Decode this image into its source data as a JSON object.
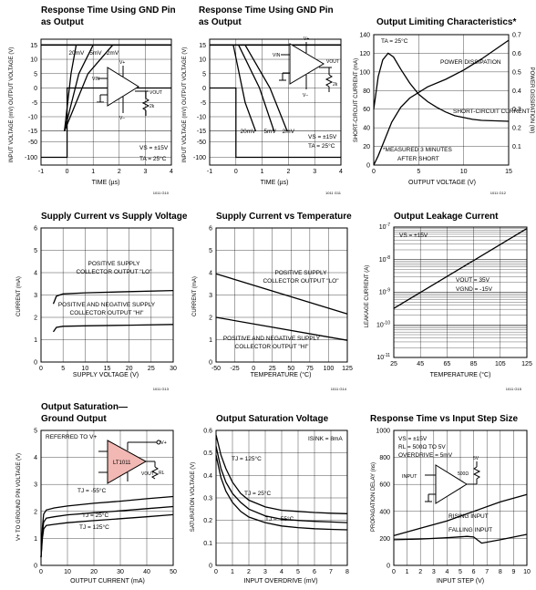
{
  "chart_data": [
    {
      "id": "p1",
      "type": "line",
      "title": [
        "Response Time Using GND Pin",
        "as Output"
      ],
      "xlabel": "TIME (µs)",
      "ylabel": "INPUT VOLTAGE (mV)   OUTPUT VOLTAGE (V)",
      "xlim": [
        -1,
        4
      ],
      "ylim": [
        -125,
        17
      ],
      "xticks": [
        -1,
        0,
        1,
        2,
        3,
        4
      ],
      "yticks": [
        15,
        10,
        5,
        0,
        -5,
        -10,
        -15,
        -50,
        -100
      ],
      "series": [
        {
          "name": "20mV",
          "points": [
            [
              -0.1,
              -15
            ],
            [
              0.15,
              5
            ],
            [
              0.35,
              15
            ]
          ]
        },
        {
          "name": "5mV",
          "points": [
            [
              -0.1,
              -15
            ],
            [
              0.45,
              5
            ],
            [
              1.0,
              15
            ]
          ]
        },
        {
          "name": "2mV",
          "points": [
            [
              -0.1,
              -15
            ],
            [
              0.8,
              5
            ],
            [
              1.75,
              15
            ]
          ]
        },
        {
          "name": "",
          "points": [
            [
              -1,
              -100
            ],
            [
              0,
              -100
            ],
            [
              0,
              0
            ],
            [
              4,
              0
            ]
          ]
        }
      ],
      "annotations": [
        "VS = ±15V",
        "TA = 25°C"
      ],
      "figure_id": "1011 G10"
    },
    {
      "id": "p2",
      "type": "line",
      "title": [
        "Response Time Using GND Pin",
        "as Output"
      ],
      "xlabel": "TIME (µs)",
      "ylabel": "INPUT VOLTAGE (mV)   OUTPUT VOLTAGE (V)",
      "xlim": [
        -1,
        4
      ],
      "ylim": [
        -125,
        17
      ],
      "xticks": [
        -1,
        0,
        1,
        2,
        3,
        4
      ],
      "yticks": [
        15,
        10,
        5,
        0,
        -5,
        -10,
        -15,
        -50,
        -100
      ],
      "series": [
        {
          "name": "20mV",
          "points": [
            [
              -0.1,
              15
            ],
            [
              0.35,
              -5
            ],
            [
              0.75,
              -15
            ]
          ]
        },
        {
          "name": "5mV",
          "points": [
            [
              0.1,
              15
            ],
            [
              0.9,
              0
            ],
            [
              1.45,
              -15
            ]
          ]
        },
        {
          "name": "2mV",
          "points": [
            [
              0.35,
              15
            ],
            [
              1.3,
              0
            ],
            [
              1.95,
              -15
            ]
          ]
        },
        {
          "name": "",
          "points": [
            [
              -1,
              0
            ],
            [
              0,
              0
            ],
            [
              0,
              -100
            ],
            [
              4,
              -100
            ]
          ]
        }
      ],
      "annotations": [
        "VS = ±15V",
        "TA = 25°C"
      ],
      "figure_id": "1011 G11"
    },
    {
      "id": "p3",
      "type": "line",
      "title": [
        "Output Limiting Characteristics*"
      ],
      "xlabel": "OUTPUT VOLTAGE (V)",
      "ylabel": "SHORT-CIRCUIT CURRENT (mA)",
      "ylabel_right": "POWER DISSIPATION (W)",
      "xlim": [
        0,
        15
      ],
      "ylim": [
        0,
        140
      ],
      "ylim_right": [
        0,
        0.7
      ],
      "xticks": [
        0,
        5,
        10,
        15
      ],
      "yticks": [
        0,
        20,
        40,
        60,
        80,
        100,
        120,
        140
      ],
      "yticks_right": [
        0.1,
        0.2,
        0.3,
        0.4,
        0.5,
        0.6,
        0.7
      ],
      "series": [
        {
          "name": "SHORT-CIRCUIT CURRENT",
          "points": [
            [
              0,
              60
            ],
            [
              0.5,
              95
            ],
            [
              1,
              113
            ],
            [
              1.6,
              120
            ],
            [
              2.2,
              116
            ],
            [
              3,
              103
            ],
            [
              4,
              88
            ],
            [
              5,
              76
            ],
            [
              6,
              68
            ],
            [
              7,
              62
            ],
            [
              8,
              57
            ],
            [
              9,
              53
            ],
            [
              10,
              51
            ],
            [
              11,
              49
            ],
            [
              12,
              48
            ],
            [
              15,
              47
            ]
          ]
        },
        {
          "name": "POWER DISSIPATION",
          "axis": "right",
          "points": [
            [
              0,
              0.0
            ],
            [
              0.5,
              0.05
            ],
            [
              1,
              0.11
            ],
            [
              2,
              0.23
            ],
            [
              3,
              0.31
            ],
            [
              4,
              0.36
            ],
            [
              6,
              0.42
            ],
            [
              8,
              0.46
            ],
            [
              10,
              0.51
            ],
            [
              12,
              0.57
            ],
            [
              15,
              0.67
            ]
          ]
        }
      ],
      "annotations": [
        "TA = 25°C",
        "POWER DISSIPATION",
        "SHORT-CIRCUIT CURRENT",
        "*MEASURED 3 MINUTES",
        "AFTER SHORT"
      ],
      "figure_id": "1011 G12"
    },
    {
      "id": "p4",
      "type": "line",
      "title": [
        "Supply Current vs Supply Voltage"
      ],
      "xlabel": "SUPPLY VOLTAGE (V)",
      "ylabel": "CURRENT (mA)",
      "xlim": [
        0,
        30
      ],
      "ylim": [
        0,
        6
      ],
      "xticks": [
        0,
        5,
        10,
        15,
        20,
        25,
        30
      ],
      "yticks": [
        0,
        1,
        2,
        3,
        4,
        5,
        6
      ],
      "series": [
        {
          "name": "POSITIVE SUPPLY COLLECTOR OUTPUT \"LO\"",
          "points": [
            [
              2.8,
              2.6
            ],
            [
              3.5,
              2.95
            ],
            [
              5,
              3.05
            ],
            [
              10,
              3.1
            ],
            [
              20,
              3.15
            ],
            [
              30,
              3.2
            ]
          ]
        },
        {
          "name": "POSITIVE AND NEGATIVE SUPPLY COLLECTOR OUTPUT \"HI\"",
          "points": [
            [
              2.8,
              1.35
            ],
            [
              3.5,
              1.55
            ],
            [
              5,
              1.6
            ],
            [
              10,
              1.62
            ],
            [
              20,
              1.65
            ],
            [
              30,
              1.68
            ]
          ]
        }
      ],
      "annotations": [
        "POSITIVE SUPPLY",
        "COLLECTOR OUTPUT \"LO\"",
        "POSITIVE AND NEGATIVE SUPPLY",
        "COLLECTOR OUTPUT \"HI\""
      ],
      "figure_id": "1011 G13"
    },
    {
      "id": "p5",
      "type": "line",
      "title": [
        "Supply Current vs Temperature"
      ],
      "xlabel": "TEMPERATURE (°C)",
      "ylabel": "CURRENT (mA)",
      "xlim": [
        -50,
        125
      ],
      "ylim": [
        0,
        6
      ],
      "xticks": [
        -50,
        -25,
        0,
        25,
        50,
        75,
        100,
        125
      ],
      "yticks": [
        0,
        1,
        2,
        3,
        4,
        5,
        6
      ],
      "series": [
        {
          "name": "POSITIVE SUPPLY COLLECTOR OUTPUT \"LO\"",
          "points": [
            [
              -50,
              3.95
            ],
            [
              125,
              2.15
            ]
          ]
        },
        {
          "name": "POSITIVE AND NEGATIVE SUPPLY COLLECTOR OUTPUT \"HI\"",
          "points": [
            [
              -50,
              2.0
            ],
            [
              125,
              0.97
            ]
          ]
        }
      ],
      "annotations": [
        "POSITIVE SUPPLY",
        "COLLECTOR OUTPUT \"LO\"",
        "POSITIVE AND NEGATIVE SUPPLY",
        "COLLECTOR OUTPUT \"HI\""
      ],
      "figure_id": "1011 G14"
    },
    {
      "id": "p6",
      "type": "line",
      "title": [
        "Output Leakage Current"
      ],
      "xlabel": "TEMPERATURE (°C)",
      "ylabel": "LEAKAGE CURRENT (A)",
      "xlim": [
        25,
        125
      ],
      "ylog": true,
      "ylim": [
        1e-11,
        1e-07
      ],
      "xticks": [
        25,
        45,
        65,
        85,
        105,
        125
      ],
      "ytick_exponents": [
        -7,
        -8,
        -9,
        -10,
        -11
      ],
      "series": [
        {
          "name": "",
          "points": [
            [
              25,
              3.2e-10
            ],
            [
              125,
              9e-08
            ]
          ]
        }
      ],
      "annotations": [
        "VS = ±15V",
        "VOUT = 35V",
        "VGND = -15V"
      ],
      "figure_id": "1011 G15"
    },
    {
      "id": "p7",
      "type": "line",
      "title": [
        "Output Saturation—",
        "Ground Output"
      ],
      "xlabel": "OUTPUT CURRENT (mA)",
      "ylabel": "V+ TO GROUND PIN VOLTAGE (V)",
      "xlim": [
        0,
        50
      ],
      "ylim": [
        0,
        5
      ],
      "xticks": [
        0,
        10,
        20,
        30,
        40,
        50
      ],
      "yticks": [
        0,
        1,
        2,
        3,
        4,
        5
      ],
      "series": [
        {
          "name": "TJ = -55°C",
          "points": [
            [
              0,
              0.3
            ],
            [
              0.5,
              1.4
            ],
            [
              1,
              1.9
            ],
            [
              2,
              2.05
            ],
            [
              5,
              2.13
            ],
            [
              10,
              2.2
            ],
            [
              20,
              2.3
            ],
            [
              30,
              2.38
            ],
            [
              40,
              2.47
            ],
            [
              50,
              2.55
            ]
          ]
        },
        {
          "name": "TJ = 25°C",
          "points": [
            [
              0,
              0.3
            ],
            [
              0.5,
              1.2
            ],
            [
              1,
              1.6
            ],
            [
              2,
              1.75
            ],
            [
              5,
              1.8
            ],
            [
              10,
              1.87
            ],
            [
              20,
              1.95
            ],
            [
              30,
              2.02
            ],
            [
              40,
              2.1
            ],
            [
              50,
              2.18
            ]
          ]
        },
        {
          "name": "TJ = 125°C",
          "points": [
            [
              0,
              0.3
            ],
            [
              0.5,
              1.0
            ],
            [
              1,
              1.35
            ],
            [
              2,
              1.48
            ],
            [
              5,
              1.52
            ],
            [
              10,
              1.58
            ],
            [
              20,
              1.66
            ],
            [
              30,
              1.73
            ],
            [
              40,
              1.8
            ],
            [
              50,
              1.88
            ]
          ]
        }
      ],
      "annotations": [
        "REFERRED TO V+"
      ],
      "figure_id": "1011 G16"
    },
    {
      "id": "p8",
      "type": "line",
      "title": [
        "Output Saturation Voltage"
      ],
      "xlabel": "INPUT OVERDRIVE (mV)",
      "ylabel": "SATURATION VOLTAGE (V)",
      "xlim": [
        0,
        8
      ],
      "ylim": [
        0,
        0.6
      ],
      "xticks": [
        0,
        1,
        2,
        3,
        4,
        5,
        6,
        7,
        8
      ],
      "yticks": [
        0,
        0.1,
        0.2,
        0.3,
        0.4,
        0.5,
        0.6
      ],
      "series": [
        {
          "name": "TJ = 125°C",
          "points": [
            [
              0,
              0.58
            ],
            [
              0.3,
              0.49
            ],
            [
              0.6,
              0.43
            ],
            [
              1,
              0.37
            ],
            [
              1.5,
              0.32
            ],
            [
              2,
              0.29
            ],
            [
              3,
              0.26
            ],
            [
              4,
              0.245
            ],
            [
              5,
              0.24
            ],
            [
              6,
              0.235
            ],
            [
              7,
              0.232
            ],
            [
              8,
              0.23
            ]
          ]
        },
        {
          "name": "TJ = 25°C",
          "points": [
            [
              0,
              0.53
            ],
            [
              0.3,
              0.43
            ],
            [
              0.6,
              0.37
            ],
            [
              1,
              0.32
            ],
            [
              1.5,
              0.28
            ],
            [
              2,
              0.25
            ],
            [
              3,
              0.22
            ],
            [
              4,
              0.205
            ],
            [
              5,
              0.2
            ],
            [
              6,
              0.196
            ],
            [
              7,
              0.193
            ],
            [
              8,
              0.19
            ]
          ]
        },
        {
          "name": "TJ = -55°C",
          "points": [
            [
              0,
              0.49
            ],
            [
              0.3,
              0.39
            ],
            [
              0.6,
              0.33
            ],
            [
              1,
              0.28
            ],
            [
              1.5,
              0.24
            ],
            [
              2,
              0.215
            ],
            [
              3,
              0.19
            ],
            [
              4,
              0.175
            ],
            [
              5,
              0.168
            ],
            [
              6,
              0.163
            ],
            [
              7,
              0.16
            ],
            [
              8,
              0.158
            ]
          ]
        }
      ],
      "annotations": [
        "ISINK = 8mA"
      ],
      "figure_id": "1011 G17"
    },
    {
      "id": "p9",
      "type": "line",
      "title": [
        "Response Time vs Input Step Size"
      ],
      "xlabel": "INPUT STEP (V)",
      "ylabel": "PROPAGATION DELAY (ns)",
      "xlim": [
        0,
        10
      ],
      "ylim": [
        0,
        1000
      ],
      "xticks": [
        0,
        1,
        2,
        3,
        4,
        5,
        6,
        7,
        8,
        9,
        10
      ],
      "yticks": [
        0,
        200,
        400,
        600,
        800,
        1000
      ],
      "series": [
        {
          "name": "RISING INPUT",
          "points": [
            [
              0,
              220
            ],
            [
              2,
              275
            ],
            [
              4,
              330
            ],
            [
              6,
              400
            ],
            [
              8,
              470
            ],
            [
              10,
              525
            ]
          ]
        },
        {
          "name": "FALLING INPUT",
          "points": [
            [
              0,
              190
            ],
            [
              2,
              195
            ],
            [
              4,
              205
            ],
            [
              5.5,
              215
            ],
            [
              6,
              210
            ],
            [
              6.6,
              165
            ],
            [
              8,
              190
            ],
            [
              10,
              230
            ]
          ]
        }
      ],
      "annotations": [
        "VS = ±15V",
        "RL = 500Ω TO 5V",
        "OVERDRIVE = 5mV",
        "RISING INPUT",
        "FALLING INPUT"
      ],
      "figure_id": "1011 G18"
    }
  ]
}
